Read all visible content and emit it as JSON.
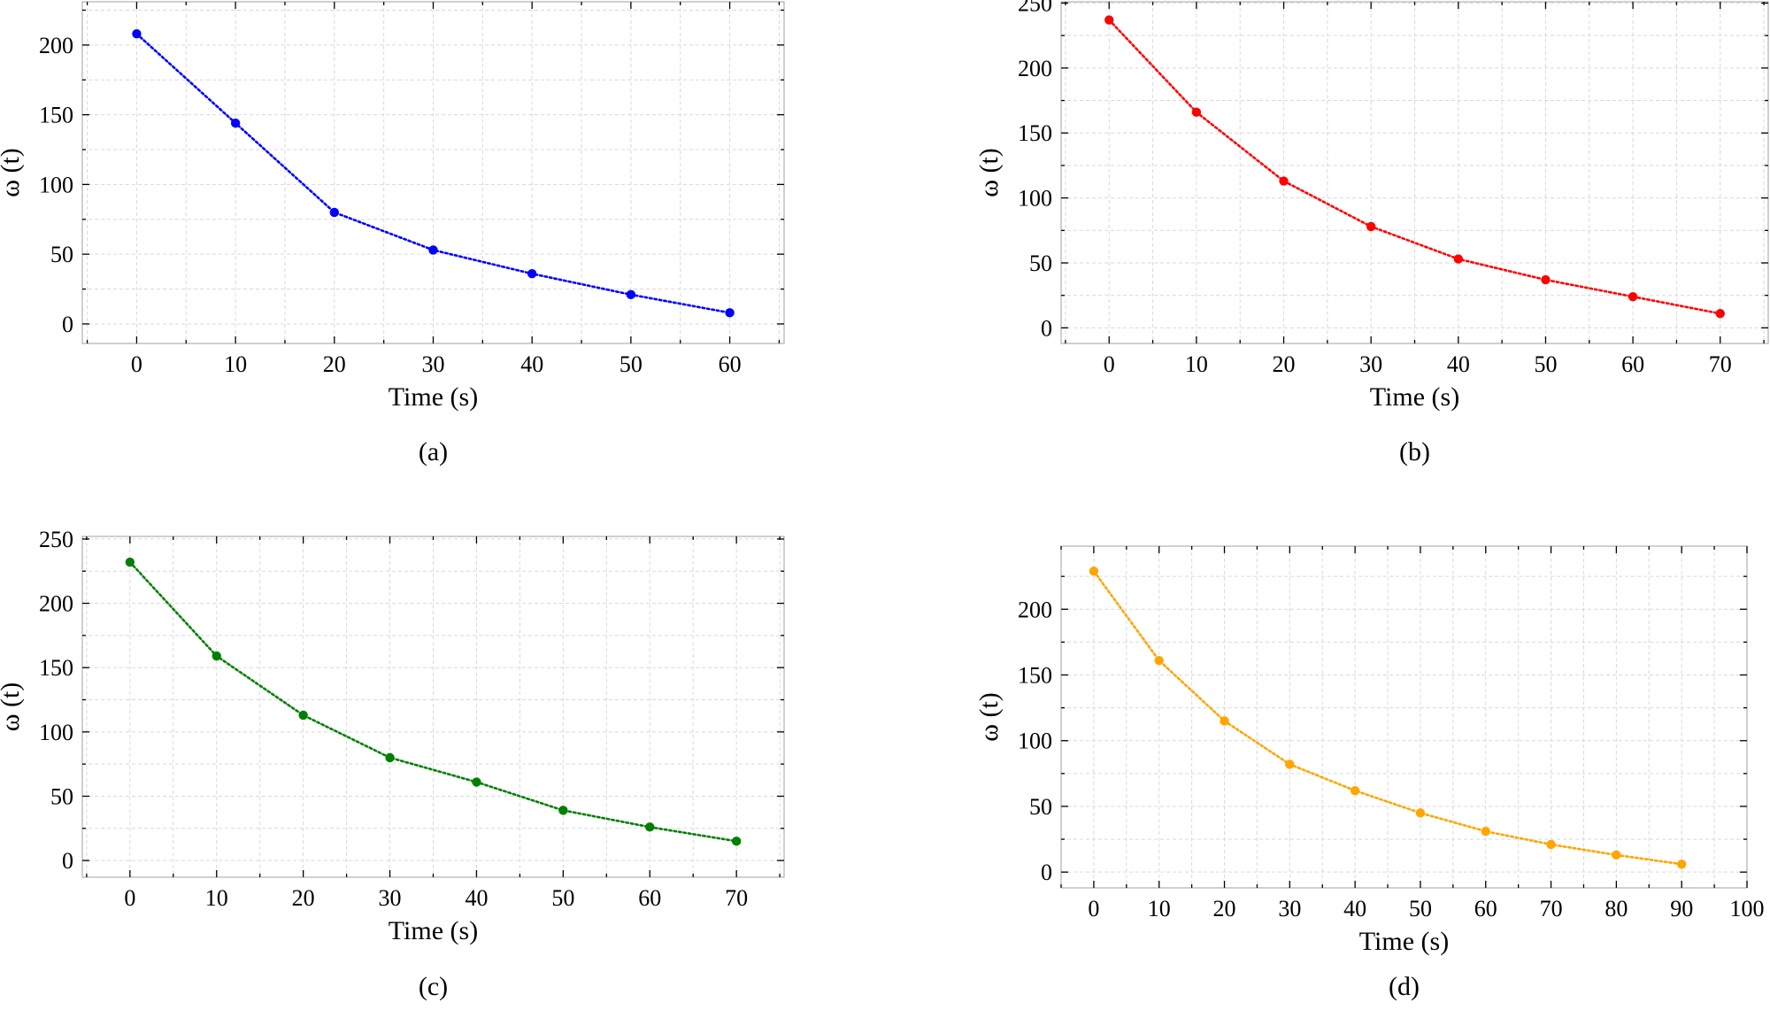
{
  "chart_data": [
    {
      "type": "line",
      "panel_label": "(a)",
      "xlabel": "Time (s)",
      "ylabel": "ω (t)",
      "xlim": [
        -5.5,
        65.5
      ],
      "ylim": [
        -14,
        231
      ],
      "xticks": [
        0,
        10,
        20,
        30,
        40,
        50,
        60
      ],
      "yticks": [
        0,
        50,
        100,
        150,
        200
      ],
      "x_minor_step": 5,
      "y_minor_step": 25,
      "grid": true,
      "color": "#0000ff",
      "line_style": "dotted",
      "series": [
        {
          "x": [
            0,
            10,
            20,
            30,
            40,
            50,
            60
          ],
          "y": [
            208,
            144,
            80,
            53,
            36,
            21,
            8
          ]
        }
      ]
    },
    {
      "type": "line",
      "panel_label": "(b)",
      "xlabel": "Time (s)",
      "ylabel": "ω (t)",
      "xlim": [
        -5.5,
        75.5
      ],
      "ylim": [
        -12,
        251
      ],
      "xticks": [
        0,
        10,
        20,
        30,
        40,
        50,
        60,
        70
      ],
      "yticks": [
        0,
        50,
        100,
        150,
        200,
        250
      ],
      "x_minor_step": 5,
      "y_minor_step": 25,
      "grid": true,
      "color": "#ff0000",
      "line_style": "dotted",
      "series": [
        {
          "x": [
            0,
            10,
            20,
            30,
            40,
            50,
            60,
            70
          ],
          "y": [
            237,
            166,
            113,
            78,
            53,
            37,
            24,
            11
          ]
        }
      ]
    },
    {
      "type": "line",
      "panel_label": "(c)",
      "xlabel": "Time (s)",
      "ylabel": "ω (t)",
      "xlim": [
        -5.5,
        75.5
      ],
      "ylim": [
        -13,
        252
      ],
      "xticks": [
        0,
        10,
        20,
        30,
        40,
        50,
        60,
        70
      ],
      "yticks": [
        0,
        50,
        100,
        150,
        200,
        250
      ],
      "x_minor_step": 5,
      "y_minor_step": 25,
      "grid": true,
      "color": "#008000",
      "line_style": "dotted",
      "series": [
        {
          "x": [
            0,
            10,
            20,
            30,
            40,
            50,
            60,
            70
          ],
          "y": [
            232,
            159,
            113,
            80,
            61,
            39,
            26,
            15
          ]
        }
      ]
    },
    {
      "type": "line",
      "panel_label": "(d)",
      "xlabel": "Time (s)",
      "ylabel": "ω (t)",
      "xlim": [
        -5,
        100
      ],
      "ylim": [
        -12,
        248
      ],
      "xticks": [
        0,
        10,
        20,
        30,
        40,
        50,
        60,
        70,
        80,
        90,
        100
      ],
      "yticks": [
        0,
        50,
        100,
        150,
        200
      ],
      "x_minor_step": 5,
      "y_minor_step": 25,
      "grid": true,
      "color": "#ffa500",
      "line_style": "dotted",
      "series": [
        {
          "x": [
            0,
            10,
            20,
            30,
            40,
            50,
            60,
            70,
            80,
            90
          ],
          "y": [
            229,
            161,
            115,
            82,
            62,
            45,
            31,
            21,
            13,
            6
          ]
        }
      ]
    }
  ]
}
